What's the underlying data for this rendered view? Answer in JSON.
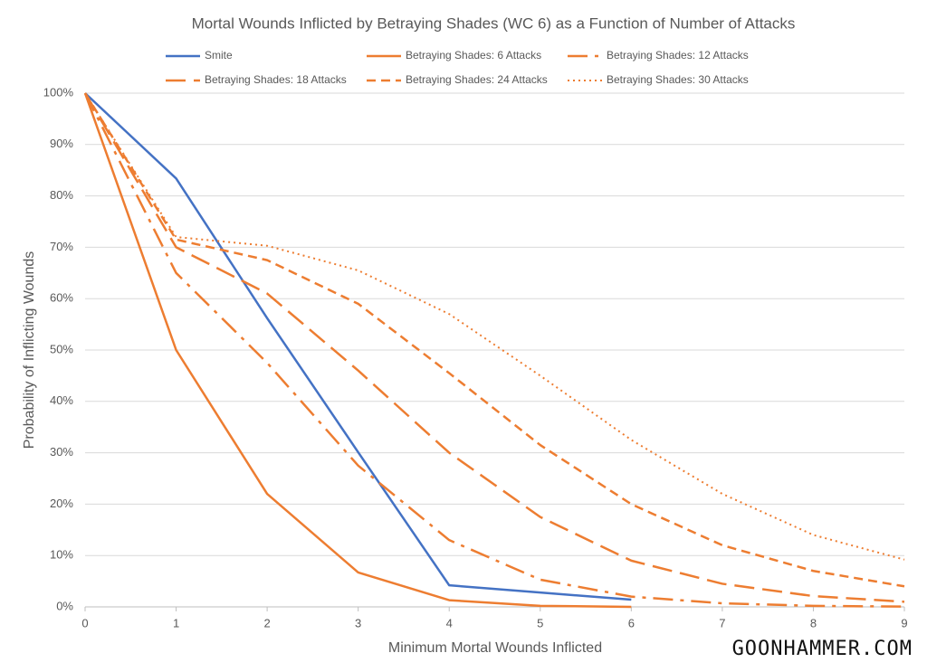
{
  "chart_data": {
    "type": "line",
    "title": "Mortal Wounds Inflicted by Betraying Shades (WC 6) as a Function of Number of Attacks",
    "x_label": "Minimum Mortal Wounds Inflicted",
    "y_label": "Probability of Inflicting Wounds",
    "annotation": "GOONHAMMER.COM",
    "x": [
      0,
      1,
      2,
      3,
      4,
      5,
      6,
      7,
      8,
      9
    ],
    "xlim": [
      0,
      9
    ],
    "xticks": [
      0,
      1,
      2,
      3,
      4,
      5,
      6,
      7,
      8,
      9
    ],
    "ylim": [
      0,
      100
    ],
    "yticks": [
      {
        "value": 0,
        "label": "0%"
      },
      {
        "value": 10,
        "label": "10%"
      },
      {
        "value": 20,
        "label": "20%"
      },
      {
        "value": 30,
        "label": "30%"
      },
      {
        "value": 40,
        "label": "40%"
      },
      {
        "value": 50,
        "label": "50%"
      },
      {
        "value": 60,
        "label": "60%"
      },
      {
        "value": 70,
        "label": "70%"
      },
      {
        "value": 80,
        "label": "80%"
      },
      {
        "value": 90,
        "label": "90%"
      },
      {
        "value": 100,
        "label": "100%"
      }
    ],
    "grid": true,
    "series": [
      {
        "name": "Smite",
        "color": "#4472c4",
        "dash": "solid",
        "values": [
          100,
          83.4,
          56.2,
          30.1,
          4.2,
          2.8,
          1.4,
          null,
          null,
          null
        ]
      },
      {
        "name": "Betraying Shades: 6 Attacks",
        "color": "#ed7d31",
        "dash": "solid",
        "values": [
          100,
          50,
          22,
          6.7,
          1.3,
          0.2,
          0,
          null,
          null,
          null
        ]
      },
      {
        "name": "Betraying Shades: 12 Attacks",
        "color": "#ed7d31",
        "dash": "longdashdot",
        "values": [
          100,
          65,
          47.5,
          27.5,
          13,
          5.3,
          2,
          0.7,
          0.2,
          0.05
        ]
      },
      {
        "name": "Betraying Shades: 18 Attacks",
        "color": "#ed7d31",
        "dash": "longdash",
        "values": [
          100,
          70,
          61,
          46,
          30,
          17.5,
          9,
          4.5,
          2.1,
          1
        ]
      },
      {
        "name": "Betraying Shades: 24 Attacks",
        "color": "#ed7d31",
        "dash": "dash",
        "values": [
          100,
          71.5,
          67.5,
          59,
          45.5,
          31.5,
          20,
          12,
          7,
          4
        ]
      },
      {
        "name": "Betraying Shades: 30 Attacks",
        "color": "#ed7d31",
        "dash": "dot",
        "values": [
          100,
          72,
          70.3,
          65.5,
          57,
          45,
          32.5,
          22,
          14,
          9.2
        ]
      }
    ]
  }
}
